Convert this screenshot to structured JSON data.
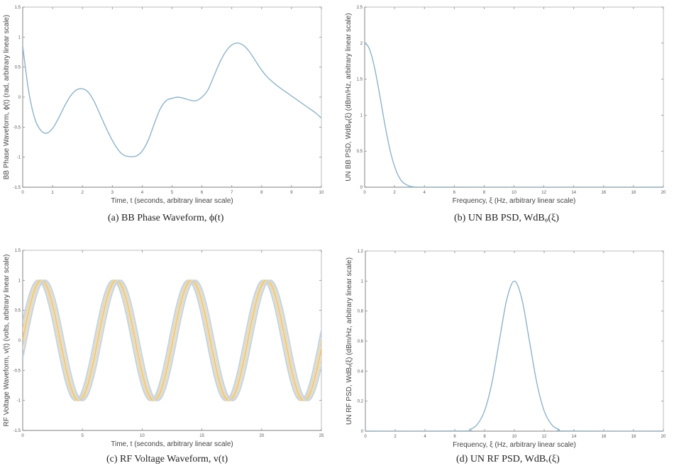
{
  "captions": {
    "a": "(a) BB Phase Waveform, ϕ(t)",
    "b": "(b) UN BB PSD, WdBᵩ(ξ)",
    "c": "(c) RF Voltage Waveform, v(t)",
    "d": "(d) UN RF PSD, WdBᵥ(ξ)"
  },
  "chart_data": [
    {
      "id": "a",
      "type": "line",
      "title": "(a) BB Phase Waveform, ϕ(t)",
      "xlabel": "Time, t (seconds, arbitrary linear scale)",
      "ylabel": "BB Phase Waveform, ϕ(t) (rad, arbitrary linear scale)",
      "xlim": [
        0,
        10
      ],
      "ylim": [
        -1.5,
        1.5
      ],
      "xticks": [
        0,
        1,
        2,
        3,
        4,
        5,
        6,
        7,
        8,
        9,
        10
      ],
      "yticks": [
        -1.5,
        -1,
        -0.5,
        0,
        0.5,
        1,
        1.5
      ],
      "grid": false,
      "series": [
        {
          "name": "phi(t)",
          "color": "#8fb3c8",
          "x": [
            0,
            0.2,
            0.4,
            0.6,
            0.8,
            1.0,
            1.2,
            1.4,
            1.6,
            1.8,
            2.0,
            2.2,
            2.4,
            2.6,
            2.8,
            3.0,
            3.2,
            3.4,
            3.6,
            3.8,
            4.0,
            4.2,
            4.4,
            4.6,
            4.8,
            5.0,
            5.2,
            5.4,
            5.6,
            5.8,
            6.0,
            6.2,
            6.4,
            6.6,
            6.8,
            7.0,
            7.2,
            7.4,
            7.6,
            7.8,
            8.0,
            8.2,
            8.4,
            8.6,
            8.8,
            9.0,
            9.2,
            9.4,
            9.6,
            9.8,
            10.0
          ],
          "y": [
            0.85,
            0.1,
            -0.35,
            -0.55,
            -0.6,
            -0.52,
            -0.35,
            -0.15,
            0.02,
            0.12,
            0.14,
            0.08,
            -0.08,
            -0.3,
            -0.52,
            -0.72,
            -0.88,
            -0.97,
            -0.99,
            -0.98,
            -0.9,
            -0.72,
            -0.45,
            -0.2,
            -0.06,
            -0.02,
            0.0,
            -0.02,
            -0.05,
            -0.06,
            0.0,
            0.12,
            0.35,
            0.58,
            0.76,
            0.87,
            0.9,
            0.86,
            0.75,
            0.6,
            0.45,
            0.33,
            0.24,
            0.16,
            0.09,
            0.02,
            -0.05,
            -0.12,
            -0.19,
            -0.26,
            -0.35
          ]
        }
      ]
    },
    {
      "id": "b",
      "type": "line",
      "title": "(b) UN BB PSD, WdBᵩ(ξ)",
      "xlabel": "Frequency, ξ (Hz, arbitrary linear scale)",
      "ylabel": "UN BB PSD, WdBᵩ(ξ) (dBm/Hz, arbitrary linear scale)",
      "xlim": [
        0,
        20
      ],
      "ylim": [
        0,
        2.5
      ],
      "xticks": [
        0,
        2,
        4,
        6,
        8,
        10,
        12,
        14,
        16,
        18,
        20
      ],
      "yticks": [
        0,
        0.5,
        1,
        1.5,
        2,
        2.5
      ],
      "grid": false,
      "series": [
        {
          "name": "WdB_phi(xi)",
          "color": "#8fb3c8",
          "x": [
            0,
            0.25,
            0.5,
            0.75,
            1.0,
            1.25,
            1.5,
            1.75,
            2.0,
            2.25,
            2.5,
            2.75,
            3.0,
            3.25,
            3.5,
            4.0,
            20
          ],
          "y": [
            2.0,
            1.95,
            1.8,
            1.57,
            1.29,
            0.99,
            0.71,
            0.47,
            0.29,
            0.16,
            0.08,
            0.04,
            0.016,
            0.006,
            0.002,
            0.0,
            0.0
          ]
        }
      ]
    },
    {
      "id": "c",
      "type": "line",
      "title": "(c) RF Voltage Waveform, v(t)",
      "xlabel": "Time, t (seconds, arbitrary linear scale)",
      "ylabel": "RF Voltage Waveform, v(t) (volts, arbitrary linear scale)",
      "xlim": [
        0,
        25
      ],
      "ylim": [
        -1.5,
        1.5
      ],
      "xticks": [
        0,
        5,
        10,
        15,
        20,
        25
      ],
      "yticks": [
        -1.5,
        -1,
        -0.5,
        0,
        0.5,
        1,
        1.5
      ],
      "grid": false,
      "description": "Several phase-shifted sinusoids, amplitude 1, period ≈ 6.28 s, peaks near t ≈ 1.6, 7.9, 14.1, 20.4; troughs near t ≈ 4.7, 11.0, 17.3, 23.6",
      "series": [
        {
          "name": "v(t) shift -0.3",
          "color": "#c5d3df",
          "amplitude": 1,
          "period": 6.2832,
          "phase_shift": -0.3
        },
        {
          "name": "v(t) shift -0.15",
          "color": "#e6d9b8",
          "amplitude": 1,
          "period": 6.2832,
          "phase_shift": -0.15
        },
        {
          "name": "v(t)",
          "color": "#f0c878",
          "amplitude": 1,
          "period": 6.2832,
          "phase_shift": 0
        },
        {
          "name": "v(t) shift +0.15",
          "color": "#e2dcc8",
          "amplitude": 1,
          "period": 6.2832,
          "phase_shift": 0.15
        },
        {
          "name": "v(t) shift +0.3",
          "color": "#c8d4de",
          "amplitude": 1,
          "period": 6.2832,
          "phase_shift": 0.3
        }
      ]
    },
    {
      "id": "d",
      "type": "line",
      "title": "(d) UN RF PSD, WdBᵥ(ξ)",
      "xlabel": "Frequency, ξ (Hz, arbitrary linear scale)",
      "ylabel": "UN RF PSD, WdBᵥ(ξ) (dBm/Hz, arbitrary linear scale)",
      "xlim": [
        0,
        20
      ],
      "ylim": [
        0,
        1.2
      ],
      "xticks": [
        0,
        2,
        4,
        6,
        8,
        10,
        12,
        14,
        16,
        18,
        20
      ],
      "yticks": [
        0,
        0.2,
        0.4,
        0.6,
        0.8,
        1,
        1.2
      ],
      "grid": false,
      "series": [
        {
          "name": "WdB_v(xi)",
          "color": "#8fb3c8",
          "x": [
            0,
            6.5,
            7.0,
            7.5,
            8.0,
            8.5,
            9.0,
            9.5,
            10.0,
            10.5,
            11.0,
            11.5,
            12.0,
            12.5,
            13.0,
            13.5,
            20
          ],
          "y": [
            0,
            0.001,
            0.011,
            0.044,
            0.135,
            0.325,
            0.607,
            0.882,
            1.0,
            0.882,
            0.607,
            0.325,
            0.135,
            0.044,
            0.011,
            0.001,
            0
          ]
        }
      ]
    }
  ]
}
